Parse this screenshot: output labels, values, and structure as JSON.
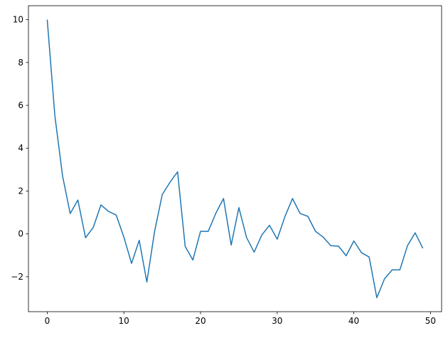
{
  "chart_data": {
    "type": "line",
    "title": "",
    "xlabel": "",
    "ylabel": "",
    "xlim": [
      -2.45,
      51.45
    ],
    "ylim": [
      -3.63,
      10.65
    ],
    "xticks": [
      0,
      10,
      20,
      30,
      40,
      50
    ],
    "yticks": [
      -2,
      0,
      2,
      4,
      6,
      8,
      10
    ],
    "grid": false,
    "color": "#1f77b4",
    "x": [
      0,
      1,
      2,
      3,
      4,
      5,
      6,
      7,
      8,
      9,
      10,
      11,
      12,
      13,
      14,
      15,
      16,
      17,
      18,
      19,
      20,
      21,
      22,
      23,
      24,
      25,
      26,
      27,
      28,
      29,
      30,
      31,
      32,
      33,
      34,
      35,
      36,
      37,
      38,
      39,
      40,
      41,
      42,
      43,
      44,
      45,
      46,
      47,
      48,
      49
    ],
    "y": [
      10,
      5.5,
      2.7,
      0.95,
      1.58,
      -0.18,
      0.3,
      1.35,
      1.05,
      0.88,
      -0.15,
      -1.38,
      -0.3,
      -2.25,
      0.1,
      1.83,
      2.4,
      2.9,
      -0.58,
      -1.22,
      0.12,
      0.12,
      0.97,
      1.65,
      -0.52,
      1.23,
      -0.17,
      -0.85,
      -0.05,
      0.4,
      -0.25,
      0.8,
      1.65,
      0.95,
      0.82,
      0.12,
      -0.15,
      -0.55,
      -0.57,
      -1.02,
      -0.33,
      -0.88,
      -1.08,
      -2.98,
      -2.1,
      -1.68,
      -1.68,
      -0.55,
      0.05,
      -0.67
    ]
  }
}
